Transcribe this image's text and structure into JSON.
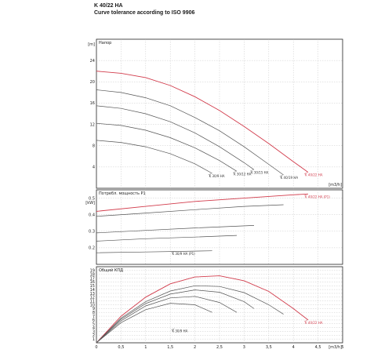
{
  "header": {
    "title": "K 40/22 HA",
    "subtitle": "Curve tolerance according to ISO 9906"
  },
  "colors": {
    "main_curve": "#d23c4c",
    "other_curves": "#555555",
    "grid": "#bbbbbb",
    "frame": "#222222"
  },
  "chart_data": [
    {
      "type": "line",
      "title": "Напор",
      "ylabel": "[m]",
      "xlabel": "[m3/h]",
      "xlim": [
        0,
        5
      ],
      "ylim": [
        0,
        28
      ],
      "x_ticks": [
        "0",
        "0,5",
        "1",
        "1,5",
        "2",
        "2,5",
        "3",
        "3,5",
        "4",
        "4,5",
        "5"
      ],
      "y_ticks": [
        "4",
        "8",
        "12",
        "16",
        "20",
        "24"
      ],
      "y_unit_label": "[m]",
      "x_unit_label": "[m3/h]",
      "series": [
        {
          "name": "K 40/22 HA",
          "highlight": true,
          "x": [
            0,
            0.5,
            1,
            1.5,
            2,
            2.5,
            3,
            3.5,
            4,
            4.3
          ],
          "y": [
            22,
            21.6,
            20.8,
            19.3,
            17.2,
            14.6,
            11.6,
            8.4,
            5.0,
            3.0
          ]
        },
        {
          "name": "K 40/19 HA",
          "highlight": false,
          "x": [
            0,
            0.5,
            1,
            1.5,
            2,
            2.5,
            3,
            3.5,
            3.8
          ],
          "y": [
            18.5,
            18,
            17,
            15.5,
            13.3,
            10.8,
            7.8,
            4.5,
            2.5
          ]
        },
        {
          "name": "K 30/15 HA",
          "highlight": false,
          "x": [
            0,
            0.5,
            1,
            1.5,
            2,
            2.5,
            3,
            3.2
          ],
          "y": [
            15.5,
            15,
            14,
            12.5,
            10.4,
            7.8,
            4.8,
            3.5
          ]
        },
        {
          "name": "K 30/12 HA",
          "highlight": false,
          "x": [
            0,
            0.5,
            1,
            1.5,
            2,
            2.5,
            2.85
          ],
          "y": [
            12.2,
            11.8,
            10.9,
            9.5,
            7.6,
            5.2,
            3.2
          ]
        },
        {
          "name": "K 30/9 HA",
          "highlight": false,
          "x": [
            0,
            0.5,
            1,
            1.5,
            2,
            2.35
          ],
          "y": [
            9,
            8.6,
            7.8,
            6.5,
            4.6,
            2.8
          ]
        }
      ],
      "grid": true
    },
    {
      "type": "line",
      "title": "Потребл. мощность P1",
      "ylabel": "[kW]",
      "xlim": [
        0,
        5
      ],
      "ylim": [
        0.1,
        0.55
      ],
      "x_ticks": [
        "0",
        "0,5",
        "1",
        "1,5",
        "2",
        "2,5",
        "3",
        "3,5",
        "4",
        "4,5",
        "5"
      ],
      "y_ticks": [
        "0.2",
        "0.3",
        "0.4",
        "0.5"
      ],
      "y_unit_label": "[kW]",
      "series": [
        {
          "name": "K 40/22 HA (P1)",
          "highlight": true,
          "x": [
            0,
            1,
            2,
            3,
            4,
            4.3
          ],
          "y": [
            0.42,
            0.45,
            0.48,
            0.5,
            0.52,
            0.525
          ]
        },
        {
          "name": "K 40/19 HA (P1)",
          "highlight": false,
          "x": [
            0,
            1,
            2,
            3,
            3.8
          ],
          "y": [
            0.39,
            0.41,
            0.43,
            0.45,
            0.46
          ]
        },
        {
          "name": "K 30/15 HA (P1)",
          "highlight": false,
          "x": [
            0,
            1,
            2,
            3.2
          ],
          "y": [
            0.29,
            0.305,
            0.32,
            0.335
          ]
        },
        {
          "name": "K 30/12 HA (P1)",
          "highlight": false,
          "x": [
            0,
            1,
            2,
            2.85
          ],
          "y": [
            0.24,
            0.255,
            0.265,
            0.275
          ]
        },
        {
          "name": "K 30/9 HA (P1)",
          "highlight": false,
          "x": [
            0,
            1,
            2,
            2.35
          ],
          "y": [
            0.17,
            0.175,
            0.18,
            0.182
          ]
        }
      ],
      "visible_labels": [
        "K 40/22 HA (P1)",
        "K 30/9 HA (P1)"
      ],
      "grid": true
    },
    {
      "type": "line",
      "title": "Общий КПД",
      "ylabel": "[%]",
      "xlim": [
        0,
        5
      ],
      "ylim": [
        0,
        20
      ],
      "x_ticks": [
        "0",
        "0,5",
        "1",
        "1,5",
        "2",
        "2,5",
        "3",
        "3,5",
        "4",
        "4,5",
        "5"
      ],
      "y_ticks": [
        "1",
        "2",
        "3",
        "4",
        "5",
        "6",
        "7",
        "8",
        "9",
        "10",
        "11",
        "12",
        "13",
        "14",
        "15",
        "16",
        "17",
        "18",
        "19"
      ],
      "series": [
        {
          "name": "K 40/22 HA",
          "highlight": true,
          "x": [
            0,
            0.5,
            1,
            1.5,
            2,
            2.5,
            3,
            3.5,
            4,
            4.3
          ],
          "y": [
            0,
            7,
            12,
            15.5,
            17.3,
            17.6,
            16.3,
            13.5,
            9,
            6
          ]
        },
        {
          "name": "K 40/19 HA",
          "highlight": false,
          "x": [
            0,
            0.5,
            1,
            1.5,
            2,
            2.5,
            3,
            3.5,
            3.8
          ],
          "y": [
            0,
            6.5,
            10.8,
            13.6,
            15,
            14.8,
            13.2,
            10,
            7.5
          ]
        },
        {
          "name": "K 30/15 HA",
          "highlight": false,
          "x": [
            0,
            0.5,
            1,
            1.5,
            2,
            2.5,
            3,
            3.2
          ],
          "y": [
            0,
            6.2,
            10.3,
            12.8,
            13.9,
            13.3,
            10.8,
            9
          ]
        },
        {
          "name": "K 30/12 HA",
          "highlight": false,
          "x": [
            0,
            0.5,
            1,
            1.5,
            2,
            2.5,
            2.85
          ],
          "y": [
            0,
            5.8,
            9.7,
            11.8,
            12.2,
            10.6,
            8
          ]
        },
        {
          "name": "K 30/9 HA",
          "highlight": false,
          "x": [
            0,
            0.5,
            1,
            1.5,
            2,
            2.35
          ],
          "y": [
            0,
            5.3,
            8.7,
            10.4,
            10,
            8
          ]
        }
      ],
      "visible_labels": [
        "K 40/22 HA",
        "K 30/9 HA"
      ],
      "grid": true
    }
  ]
}
